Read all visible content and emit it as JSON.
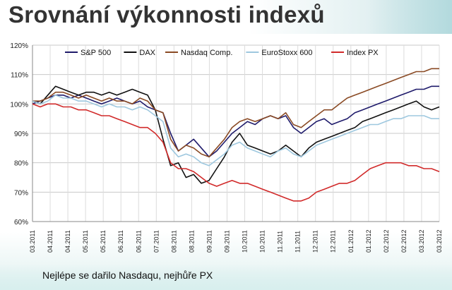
{
  "title": "Srovnání výkonnosti indexů",
  "footnote": "Nejlépe se dařilo Nasdaqu, nejhůře PX",
  "colors": {
    "S&P 500": "#1f1b6b",
    "DAX": "#111111",
    "Nasdaq Comp.": "#8a4a24",
    "EuroStoxx 600": "#9ec8df",
    "Index PX": "#d12a2a"
  },
  "chart_data": {
    "type": "line",
    "y_ticks": [
      "60%",
      "70%",
      "80%",
      "90%",
      "100%",
      "110%",
      "120%"
    ],
    "ylim": [
      60,
      120
    ],
    "grid": true,
    "legend_position": "top",
    "x_ticks": [
      "03.2011",
      "04.2011",
      "04.2011",
      "05.2011",
      "05.2011",
      "06.2011",
      "06.2011",
      "07.2011",
      "08.2011",
      "08.2011",
      "09.2011",
      "09.2011",
      "10.2011",
      "10.2011",
      "11.2011",
      "11.2011",
      "12.2011",
      "12.2011",
      "01.2012",
      "01.2012",
      "02.2012",
      "02.2012",
      "03.2012",
      "03.2012"
    ],
    "x": [
      0,
      1,
      2,
      3,
      4,
      5,
      6,
      7,
      8,
      9,
      10,
      11,
      12,
      13,
      14,
      15,
      16,
      17,
      18,
      19,
      20,
      21,
      22,
      23,
      24,
      25,
      26,
      27,
      28,
      29,
      30,
      31,
      32,
      33,
      34,
      35,
      36,
      37,
      38,
      39,
      40,
      41,
      42,
      43,
      44,
      45,
      46,
      47,
      48,
      49,
      50,
      51,
      52,
      53
    ],
    "series": [
      {
        "name": "S&P 500",
        "values": [
          100,
          101,
          102,
          103,
          103,
          102,
          103,
          102,
          101,
          100,
          101,
          102,
          101,
          100,
          101,
          99,
          98,
          97,
          90,
          84,
          86,
          88,
          85,
          82,
          84,
          87,
          90,
          92,
          94,
          93,
          95,
          96,
          95,
          96,
          92,
          90,
          92,
          94,
          95,
          93,
          94,
          95,
          97,
          98,
          99,
          100,
          101,
          102,
          103,
          104,
          105,
          105,
          106,
          106
        ]
      },
      {
        "name": "DAX",
        "values": [
          101,
          100,
          103,
          106,
          105,
          104,
          103,
          104,
          104,
          103,
          104,
          103,
          104,
          105,
          104,
          103,
          98,
          88,
          79,
          80,
          75,
          76,
          73,
          74,
          78,
          82,
          87,
          90,
          86,
          85,
          84,
          83,
          84,
          86,
          84,
          82,
          85,
          87,
          88,
          89,
          90,
          91,
          92,
          94,
          95,
          96,
          97,
          98,
          99,
          100,
          101,
          99,
          98,
          99
        ]
      },
      {
        "name": "Nasdaq Comp.",
        "values": [
          101,
          101,
          102,
          104,
          104,
          103,
          102,
          103,
          102,
          101,
          102,
          101,
          101,
          100,
          102,
          101,
          98,
          97,
          88,
          84,
          86,
          85,
          83,
          82,
          85,
          88,
          92,
          94,
          95,
          94,
          95,
          96,
          95,
          97,
          93,
          92,
          94,
          96,
          98,
          98,
          100,
          102,
          103,
          104,
          105,
          106,
          107,
          108,
          109,
          110,
          111,
          111,
          112,
          112
        ]
      },
      {
        "name": "EuroStoxx 600",
        "values": [
          101,
          100,
          101,
          103,
          102,
          102,
          101,
          101,
          100,
          99,
          100,
          99,
          99,
          98,
          99,
          98,
          96,
          94,
          85,
          82,
          83,
          82,
          80,
          79,
          81,
          83,
          86,
          87,
          85,
          84,
          83,
          82,
          84,
          85,
          83,
          82,
          84,
          86,
          87,
          88,
          89,
          90,
          91,
          92,
          93,
          93,
          94,
          95,
          95,
          96,
          96,
          96,
          95,
          95
        ]
      },
      {
        "name": "Index PX",
        "values": [
          100,
          99,
          100,
          100,
          99,
          99,
          98,
          98,
          97,
          96,
          96,
          95,
          94,
          93,
          92,
          92,
          90,
          87,
          80,
          78,
          78,
          77,
          75,
          73,
          72,
          73,
          74,
          73,
          73,
          72,
          71,
          70,
          69,
          68,
          67,
          67,
          68,
          70,
          71,
          72,
          73,
          73,
          74,
          76,
          78,
          79,
          80,
          80,
          80,
          79,
          79,
          78,
          78,
          77
        ]
      }
    ]
  }
}
